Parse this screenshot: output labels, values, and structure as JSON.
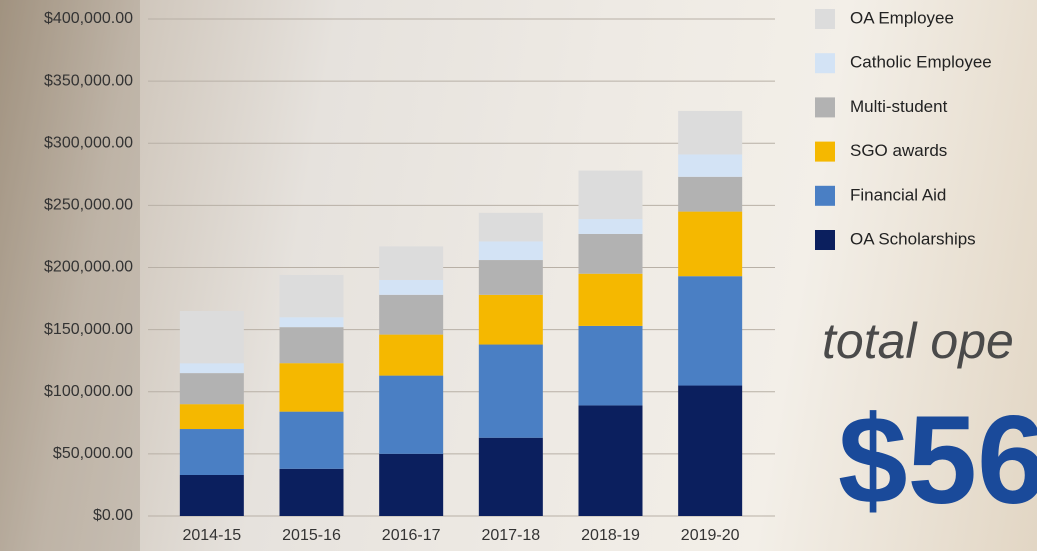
{
  "chart_data": {
    "type": "stacked-bar",
    "categories": [
      "2014-15",
      "2015-16",
      "2016-17",
      "2017-18",
      "2018-19",
      "2019-20"
    ],
    "series": [
      {
        "name": "OA Scholarships",
        "color": "#0b1f5e",
        "values": [
          33000,
          38000,
          50000,
          63000,
          89000,
          105000
        ]
      },
      {
        "name": "Financial Aid",
        "color": "#4a7fc4",
        "values": [
          37000,
          46000,
          63000,
          75000,
          64000,
          88000
        ]
      },
      {
        "name": "SGO awards",
        "color": "#f5b800",
        "values": [
          20000,
          39000,
          33000,
          40000,
          42000,
          52000
        ]
      },
      {
        "name": "Multi-student",
        "color": "#b2b2b2",
        "values": [
          25000,
          29000,
          32000,
          28000,
          32000,
          28000
        ]
      },
      {
        "name": "Catholic Employee",
        "color": "#d3e3f5",
        "values": [
          8000,
          8000,
          12000,
          15000,
          12000,
          18000
        ]
      },
      {
        "name": "OA Employee",
        "color": "#dcdcdc",
        "values": [
          42000,
          34000,
          27000,
          23000,
          39000,
          35000
        ]
      }
    ],
    "ylim": [
      0,
      400000
    ],
    "yticks": [
      {
        "value": 0,
        "label": "$0.00"
      },
      {
        "value": 50000,
        "label": "$50,000.00"
      },
      {
        "value": 100000,
        "label": "$100,000.00"
      },
      {
        "value": 150000,
        "label": "$150,000.00"
      },
      {
        "value": 200000,
        "label": "$200,000.00"
      },
      {
        "value": 250000,
        "label": "$250,000.00"
      },
      {
        "value": 300000,
        "label": "$300,000.00"
      },
      {
        "value": 350000,
        "label": "$350,000.00"
      },
      {
        "value": 400000,
        "label": "$400,000.00"
      }
    ],
    "grid": true,
    "legend": "right",
    "annotations": [
      "total ope",
      "$56"
    ]
  }
}
